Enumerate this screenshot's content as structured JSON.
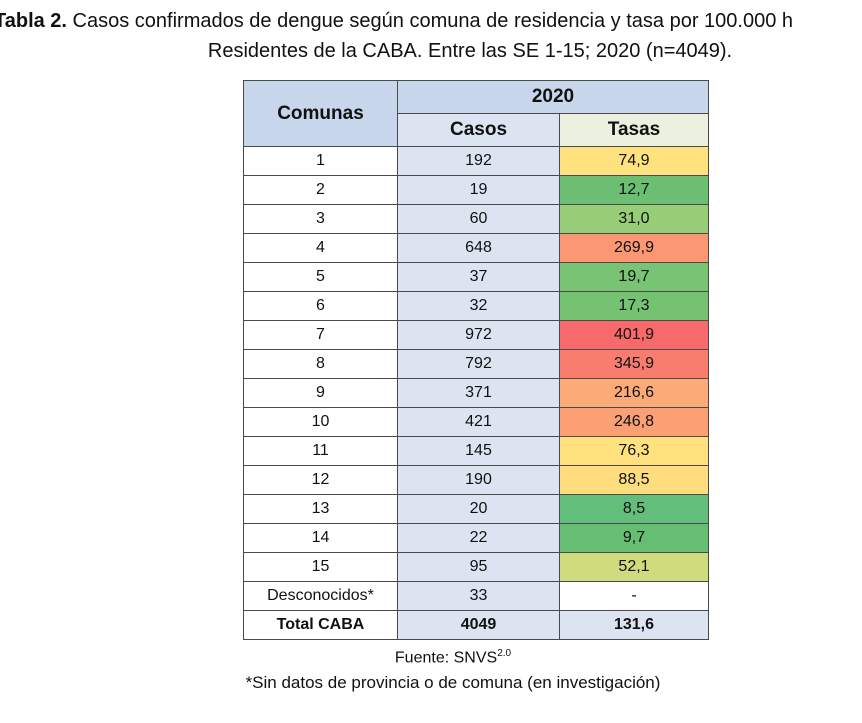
{
  "caption": {
    "label": "Tabla 2.",
    "line1_rest": " Casos confirmados de dengue según comuna de residencia y tasa por 100.000 h",
    "line2": "Residentes de la CABA. Entre las SE 1-15; 2020 (n=4049)."
  },
  "table": {
    "col_comunas": "Comunas",
    "col_year": "2020",
    "col_casos": "Casos",
    "col_tasas": "Tasas",
    "rows": [
      {
        "comuna": "1",
        "casos": "192",
        "tasa": "74,9",
        "color": "#ffe17d"
      },
      {
        "comuna": "2",
        "casos": "19",
        "tasa": "12,7",
        "color": "#6cbf72"
      },
      {
        "comuna": "3",
        "casos": "60",
        "tasa": "31,0",
        "color": "#97cd77"
      },
      {
        "comuna": "4",
        "casos": "648",
        "tasa": "269,9",
        "color": "#fb9873"
      },
      {
        "comuna": "5",
        "casos": "37",
        "tasa": "19,7",
        "color": "#79c374"
      },
      {
        "comuna": "6",
        "casos": "32",
        "tasa": "17,3",
        "color": "#75c273"
      },
      {
        "comuna": "7",
        "casos": "972",
        "tasa": "401,9",
        "color": "#f8696b"
      },
      {
        "comuna": "8",
        "casos": "792",
        "tasa": "345,9",
        "color": "#f97d6f"
      },
      {
        "comuna": "9",
        "casos": "371",
        "tasa": "216,6",
        "color": "#fcaa77"
      },
      {
        "comuna": "10",
        "casos": "421",
        "tasa": "246,8",
        "color": "#fba075"
      },
      {
        "comuna": "11",
        "casos": "145",
        "tasa": "76,3",
        "color": "#ffe27e"
      },
      {
        "comuna": "12",
        "casos": "190",
        "tasa": "88,5",
        "color": "#ffdc7e"
      },
      {
        "comuna": "13",
        "casos": "20",
        "tasa": "8,5",
        "color": "#63be7b"
      },
      {
        "comuna": "14",
        "casos": "22",
        "tasa": "9,7",
        "color": "#65be71"
      },
      {
        "comuna": "15",
        "casos": "95",
        "tasa": "52,1",
        "color": "#cfdc7e"
      },
      {
        "comuna": "Desconocidos*",
        "casos": "33",
        "tasa": "-",
        "color": "#ffffff"
      }
    ],
    "total": {
      "comuna": "Total CABA",
      "casos": "4049",
      "tasa": "131,6"
    }
  },
  "footer": {
    "source": "Fuente: SNVS",
    "source_sup": "2.0",
    "note": "*Sin datos de provincia o de comuna (en investigación)"
  }
}
